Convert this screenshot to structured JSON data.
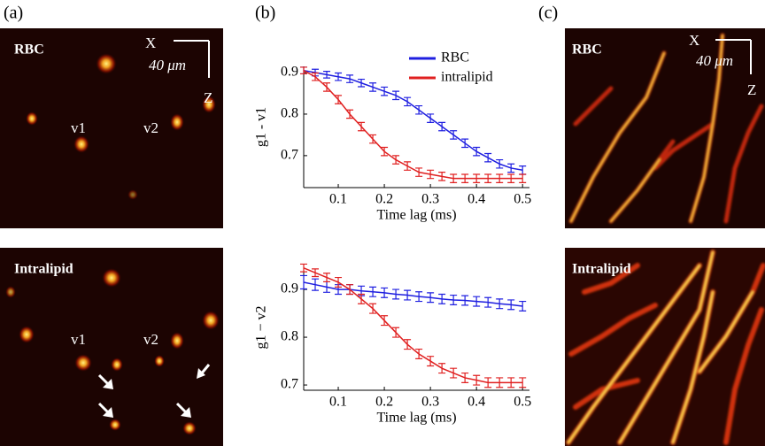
{
  "panel_labels": [
    "(a)",
    "(b)",
    "(c)"
  ],
  "panel_a": {
    "top_title": "RBC",
    "bottom_title": "Intralipid",
    "top_v1": "v1",
    "top_v2": "v2",
    "bottom_v1": "v1",
    "bottom_v2": "v2",
    "scale_x": "X",
    "scale_len": "40 μm",
    "scale_z": "Z"
  },
  "panel_c": {
    "top_title": "RBC",
    "bottom_title": "Intralipid",
    "scale_x": "X",
    "scale_len": "40 μm",
    "scale_z": "Z"
  },
  "chart_data": [
    {
      "type": "line",
      "ylabel": "g1 - v1",
      "xlabel": "Time lag (ms)",
      "x": [
        0.025,
        0.05,
        0.075,
        0.1,
        0.125,
        0.15,
        0.175,
        0.2,
        0.225,
        0.25,
        0.275,
        0.3,
        0.325,
        0.35,
        0.375,
        0.4,
        0.425,
        0.45,
        0.475,
        0.5
      ],
      "xlim": [
        0.025,
        0.515
      ],
      "xticks": [
        0.1,
        0.2,
        0.3,
        0.4,
        0.5
      ],
      "ylim": [
        0.623,
        0.915
      ],
      "yticks": [
        0.7,
        0.8,
        0.9
      ],
      "legend": "upper right",
      "series": [
        {
          "name": "RBC",
          "color": "#1f1fe0",
          "values": [
            0.905,
            0.9,
            0.895,
            0.89,
            0.885,
            0.875,
            0.865,
            0.855,
            0.845,
            0.83,
            0.81,
            0.79,
            0.77,
            0.75,
            0.73,
            0.71,
            0.695,
            0.68,
            0.67,
            0.665
          ],
          "errors": [
            0.008,
            0.008,
            0.008,
            0.009,
            0.009,
            0.009,
            0.01,
            0.01,
            0.01,
            0.01,
            0.01,
            0.01,
            0.01,
            0.01,
            0.01,
            0.01,
            0.01,
            0.01,
            0.01,
            0.01
          ]
        },
        {
          "name": "intralipid",
          "color": "#e02020",
          "values": [
            0.905,
            0.89,
            0.865,
            0.835,
            0.8,
            0.77,
            0.74,
            0.71,
            0.69,
            0.675,
            0.66,
            0.655,
            0.65,
            0.645,
            0.645,
            0.645,
            0.645,
            0.645,
            0.645,
            0.645
          ],
          "errors": [
            0.008,
            0.009,
            0.01,
            0.01,
            0.01,
            0.01,
            0.01,
            0.01,
            0.01,
            0.01,
            0.01,
            0.01,
            0.01,
            0.01,
            0.01,
            0.01,
            0.01,
            0.01,
            0.01,
            0.01
          ]
        }
      ]
    },
    {
      "type": "line",
      "ylabel": "g1 − v2",
      "xlabel": "Time lag (ms)",
      "x": [
        0.025,
        0.05,
        0.075,
        0.1,
        0.125,
        0.15,
        0.175,
        0.2,
        0.225,
        0.25,
        0.275,
        0.3,
        0.325,
        0.35,
        0.375,
        0.4,
        0.425,
        0.45,
        0.475,
        0.5
      ],
      "xlim": [
        0.025,
        0.515
      ],
      "xticks": [
        0.1,
        0.2,
        0.3,
        0.4,
        0.5
      ],
      "ylim": [
        0.689,
        0.952
      ],
      "yticks": [
        0.7,
        0.8,
        0.9
      ],
      "series": [
        {
          "color": "#1f1fe0",
          "values": [
            0.915,
            0.91,
            0.905,
            0.9,
            0.9,
            0.897,
            0.895,
            0.893,
            0.89,
            0.888,
            0.885,
            0.883,
            0.88,
            0.878,
            0.877,
            0.875,
            0.873,
            0.87,
            0.868,
            0.865
          ],
          "errors": [
            0.014,
            0.012,
            0.011,
            0.01,
            0.01,
            0.01,
            0.01,
            0.01,
            0.01,
            0.01,
            0.01,
            0.01,
            0.01,
            0.01,
            0.01,
            0.01,
            0.01,
            0.01,
            0.01,
            0.01
          ]
        },
        {
          "color": "#e02020",
          "values": [
            0.945,
            0.935,
            0.925,
            0.915,
            0.9,
            0.88,
            0.86,
            0.835,
            0.81,
            0.785,
            0.765,
            0.75,
            0.735,
            0.725,
            0.715,
            0.71,
            0.705,
            0.705,
            0.705,
            0.705
          ],
          "errors": [
            0.008,
            0.008,
            0.009,
            0.01,
            0.01,
            0.01,
            0.01,
            0.01,
            0.01,
            0.01,
            0.01,
            0.01,
            0.01,
            0.01,
            0.01,
            0.01,
            0.01,
            0.01,
            0.01,
            0.01
          ]
        }
      ]
    }
  ]
}
